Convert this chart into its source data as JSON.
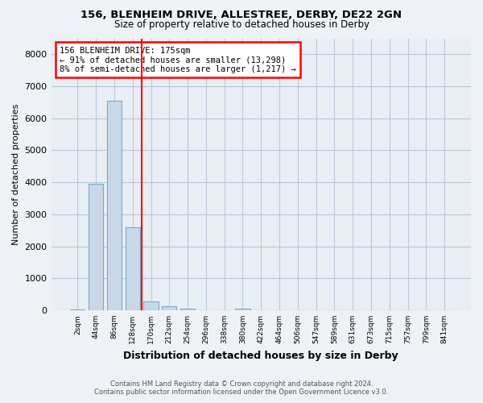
{
  "title_line1": "156, BLENHEIM DRIVE, ALLESTREE, DERBY, DE22 2GN",
  "title_line2": "Size of property relative to detached houses in Derby",
  "xlabel": "Distribution of detached houses by size in Derby",
  "ylabel": "Number of detached properties",
  "bin_labels": [
    "2sqm",
    "44sqm",
    "86sqm",
    "128sqm",
    "170sqm",
    "212sqm",
    "254sqm",
    "296sqm",
    "338sqm",
    "380sqm",
    "422sqm",
    "464sqm",
    "506sqm",
    "547sqm",
    "589sqm",
    "631sqm",
    "673sqm",
    "715sqm",
    "757sqm",
    "799sqm",
    "841sqm"
  ],
  "bar_values": [
    30,
    3950,
    6550,
    2600,
    280,
    130,
    50,
    0,
    0,
    60,
    0,
    0,
    0,
    0,
    0,
    0,
    0,
    0,
    0,
    0,
    0
  ],
  "bar_color": "#c8d8e8",
  "bar_edge_color": "#7aaac8",
  "ylim": [
    0,
    8500
  ],
  "yticks": [
    0,
    1000,
    2000,
    3000,
    4000,
    5000,
    6000,
    7000,
    8000
  ],
  "property_line_x": 3.5,
  "annotation_text_line1": "156 BLENHEIM DRIVE: 175sqm",
  "annotation_text_line2": "← 91% of detached houses are smaller (13,298)",
  "annotation_text_line3": "8% of semi-detached houses are larger (1,217) →",
  "annotation_box_color": "white",
  "annotation_box_edge_color": "red",
  "vline_color": "red",
  "footer_line1": "Contains HM Land Registry data © Crown copyright and database right 2024.",
  "footer_line2": "Contains public sector information licensed under the Open Government Licence v3.0.",
  "bg_color": "#eef2f6",
  "plot_bg_color": "#e8eef4",
  "grid_color": "#b8c8d8"
}
